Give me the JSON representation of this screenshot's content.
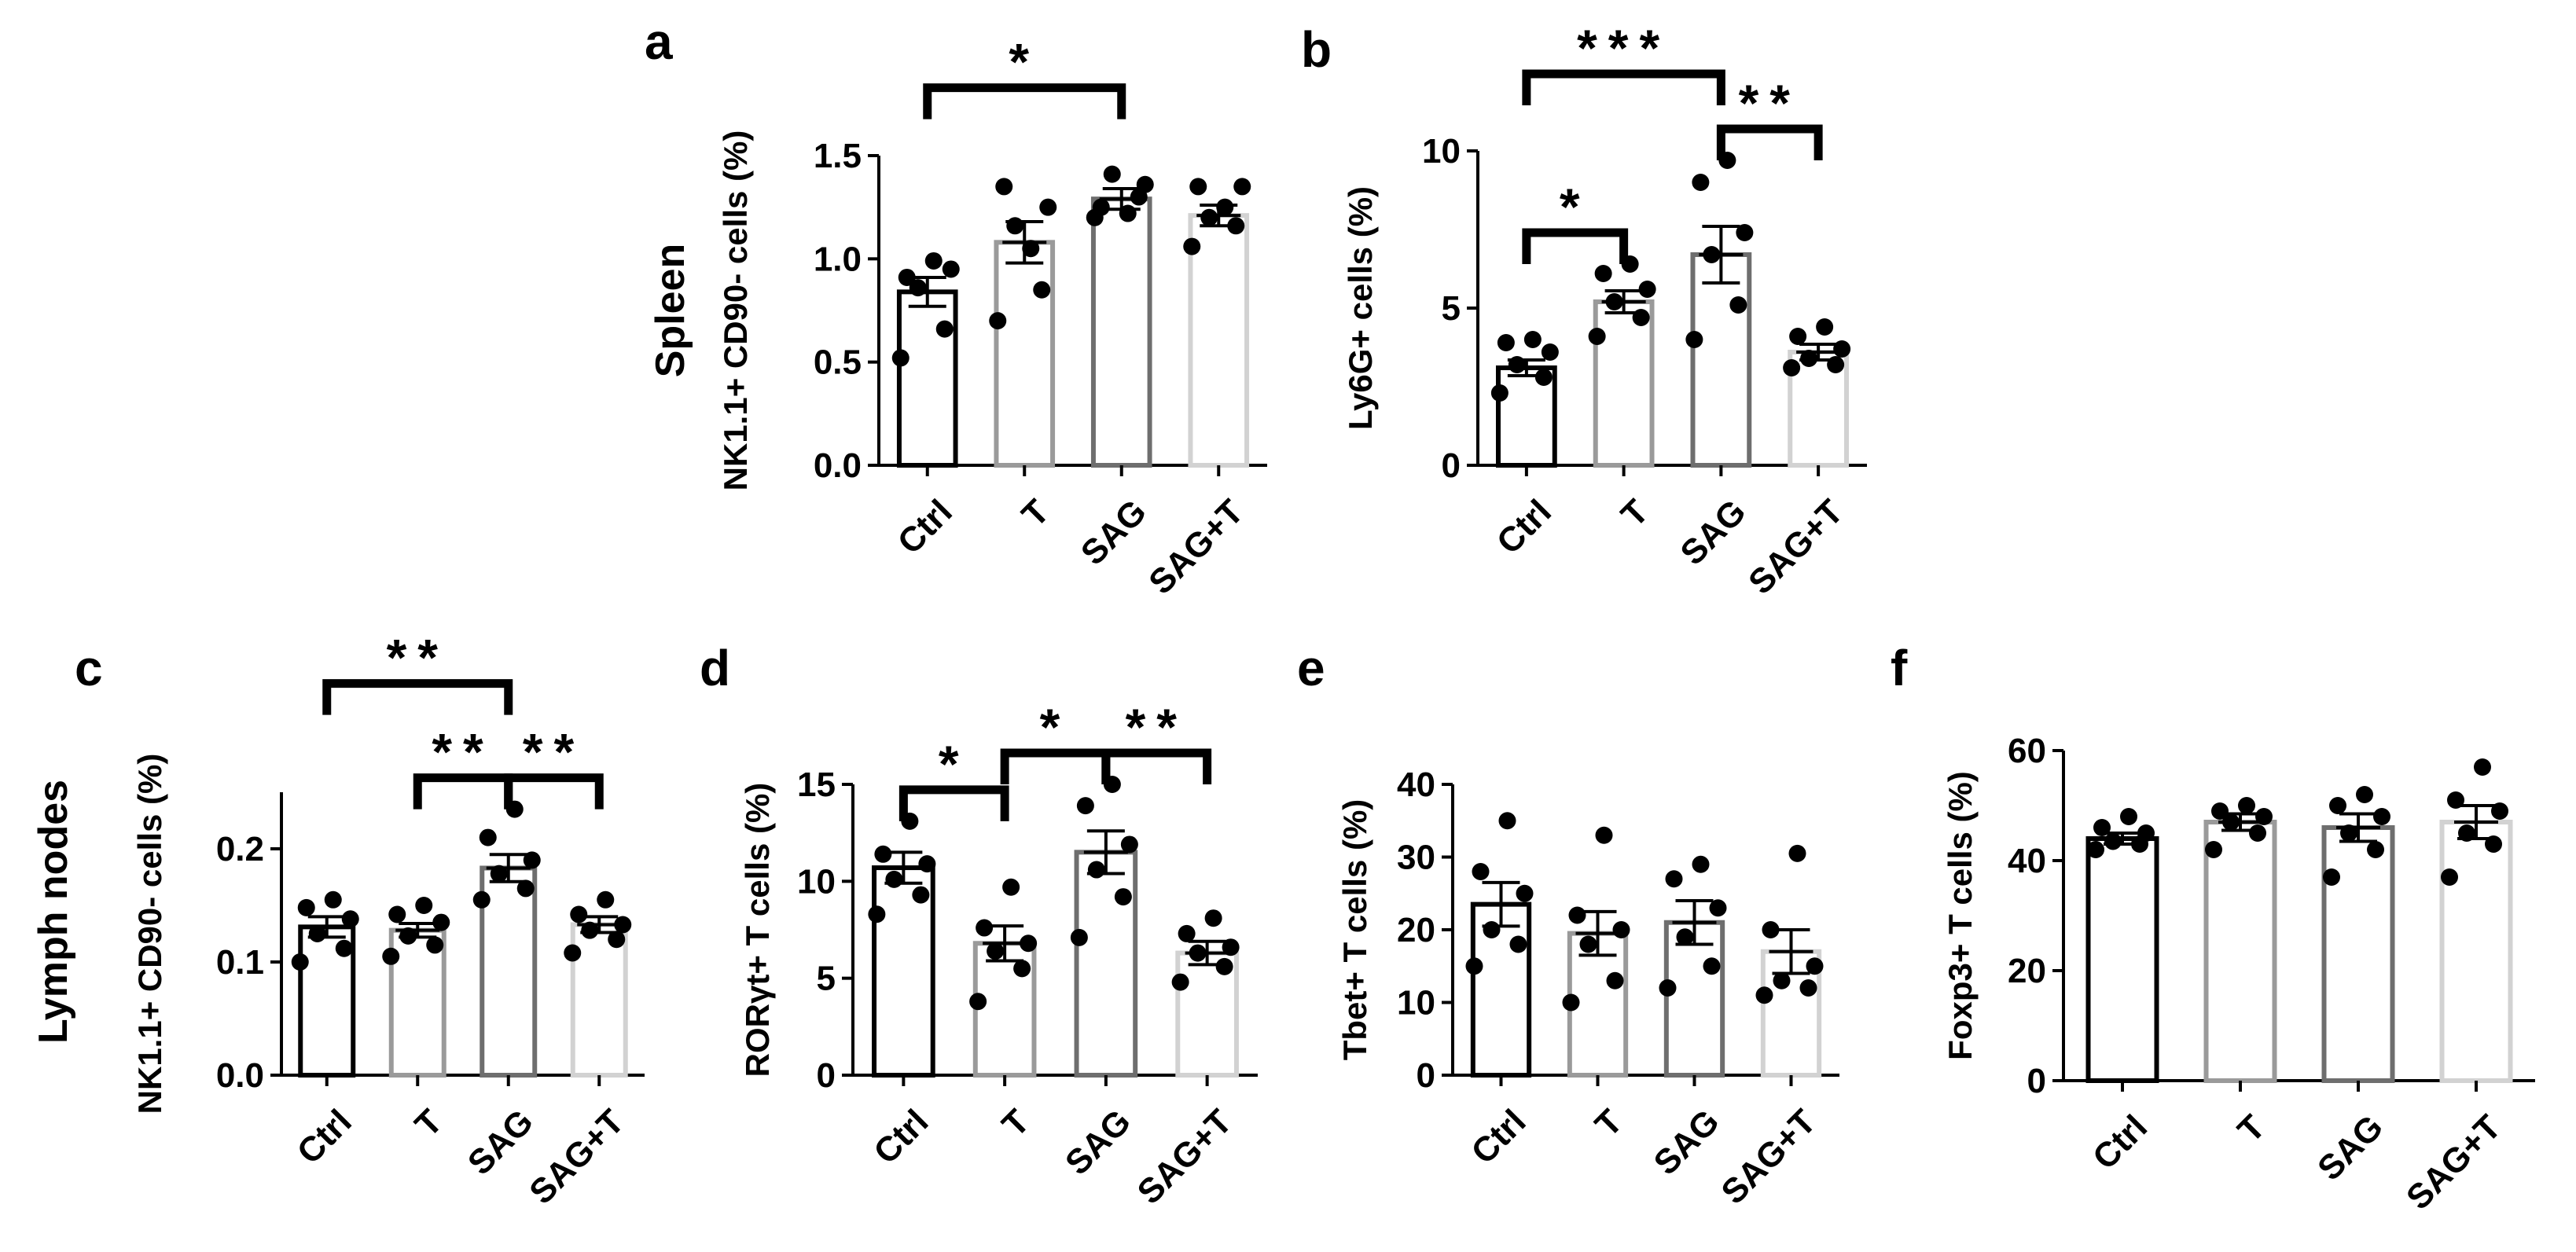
{
  "figure": {
    "row_labels": [
      "Spleen",
      "Lymph nodes"
    ]
  },
  "chart_data": [
    {
      "type": "bar",
      "panel": "a",
      "row": "Spleen",
      "ylabel": "NK1.1+ CD90- cells (%)",
      "ylim": [
        0,
        1.5
      ],
      "yticks": [
        "0.0",
        "0.5",
        "1.0",
        "1.5"
      ],
      "categories": [
        "Ctrl",
        "T",
        "SAG",
        "SAG+T"
      ],
      "values": [
        0.84,
        1.08,
        1.29,
        1.21
      ],
      "errors": [
        0.07,
        0.1,
        0.05,
        0.05
      ],
      "points": [
        [
          0.52,
          0.66,
          0.86,
          0.95,
          0.91,
          0.99
        ],
        [
          0.7,
          0.85,
          1.16,
          1.25,
          1.35,
          1.05
        ],
        [
          1.2,
          1.3,
          1.41,
          1.36,
          1.25,
          1.22
        ],
        [
          1.06,
          1.16,
          1.2,
          1.35,
          1.35,
          1.25
        ]
      ],
      "brackets": [
        {
          "from": 0,
          "to": 2,
          "label": "*"
        }
      ]
    },
    {
      "type": "bar",
      "panel": "b",
      "row": "Spleen",
      "ylabel": "Ly6G+ cells (%)",
      "ylim": [
        0,
        10
      ],
      "yticks": [
        "0",
        "5",
        "10"
      ],
      "categories": [
        "Ctrl",
        "T",
        "SAG",
        "SAG+T"
      ],
      "values": [
        3.1,
        5.2,
        6.7,
        3.6
      ],
      "errors": [
        0.25,
        0.35,
        0.9,
        0.25
      ],
      "points": [
        [
          2.3,
          2.8,
          3.2,
          3.6,
          3.9,
          4.0
        ],
        [
          4.1,
          4.7,
          5.2,
          5.6,
          6.1,
          6.4
        ],
        [
          4.0,
          5.1,
          6.7,
          7.4,
          9.0,
          9.7
        ],
        [
          3.1,
          3.2,
          3.4,
          3.7,
          4.1,
          4.4
        ]
      ],
      "brackets": [
        {
          "from": 0,
          "to": 1,
          "label": "*"
        },
        {
          "from": 0,
          "to": 2,
          "label": "***"
        },
        {
          "from": 2,
          "to": 3,
          "label": "**"
        }
      ]
    },
    {
      "type": "bar",
      "panel": "c",
      "row": "Lymph nodes",
      "ylabel": "NK1.1+ CD90- cells (%)",
      "ylim": [
        0,
        0.25
      ],
      "yticks": [
        "0.0",
        "0.1",
        "0.2"
      ],
      "categories": [
        "Ctrl",
        "T",
        "SAG",
        "SAG+T"
      ],
      "values": [
        0.131,
        0.128,
        0.183,
        0.133
      ],
      "errors": [
        0.009,
        0.006,
        0.012,
        0.007
      ],
      "points": [
        [
          0.1,
          0.112,
          0.125,
          0.138,
          0.148,
          0.155
        ],
        [
          0.105,
          0.115,
          0.123,
          0.135,
          0.142,
          0.15
        ],
        [
          0.155,
          0.165,
          0.178,
          0.19,
          0.21,
          0.235
        ],
        [
          0.108,
          0.12,
          0.128,
          0.133,
          0.142,
          0.155
        ]
      ],
      "brackets": [
        {
          "from": 0,
          "to": 2,
          "label": "**"
        },
        {
          "from": 1,
          "to": 2,
          "label": "**"
        },
        {
          "from": 2,
          "to": 3,
          "label": "**"
        }
      ]
    },
    {
      "type": "bar",
      "panel": "d",
      "row": "Lymph nodes",
      "ylabel": "RORγt+ T cells (%)",
      "ylim": [
        0,
        15
      ],
      "yticks": [
        "0",
        "5",
        "10",
        "15"
      ],
      "categories": [
        "Ctrl",
        "T",
        "SAG",
        "SAG+T"
      ],
      "values": [
        10.7,
        6.8,
        11.5,
        6.3
      ],
      "errors": [
        0.8,
        0.9,
        1.1,
        0.6
      ],
      "points": [
        [
          8.3,
          9.3,
          10.1,
          10.9,
          11.4,
          13.1
        ],
        [
          3.8,
          5.5,
          6.4,
          6.8,
          7.6,
          9.7
        ],
        [
          7.1,
          9.2,
          10.6,
          11.9,
          13.9,
          15.0
        ],
        [
          4.8,
          5.6,
          6.3,
          6.6,
          7.3,
          8.1
        ]
      ],
      "brackets": [
        {
          "from": 0,
          "to": 1,
          "label": "*"
        },
        {
          "from": 1,
          "to": 2,
          "label": "*"
        },
        {
          "from": 2,
          "to": 3,
          "label": "**"
        }
      ]
    },
    {
      "type": "bar",
      "panel": "e",
      "row": "Lymph nodes",
      "ylabel": "Tbet+ T cells (%)",
      "ylim": [
        0,
        40
      ],
      "yticks": [
        "0",
        "10",
        "20",
        "30",
        "40"
      ],
      "categories": [
        "Ctrl",
        "T",
        "SAG",
        "SAG+T"
      ],
      "values": [
        23.5,
        19.5,
        21.0,
        17.0
      ],
      "errors": [
        3.0,
        3.0,
        3.0,
        3.0
      ],
      "points": [
        [
          15.0,
          18.0,
          20.0,
          25.0,
          28.0,
          35.0
        ],
        [
          10.0,
          13.0,
          18.0,
          20.0,
          22.0,
          33.0
        ],
        [
          12.0,
          15.0,
          19.0,
          23.0,
          27.0,
          29.0
        ],
        [
          11.0,
          12.0,
          13.0,
          15.0,
          20.0,
          30.5
        ]
      ],
      "brackets": []
    },
    {
      "type": "bar",
      "panel": "f",
      "row": "Lymph nodes",
      "ylabel": "Foxp3+ T cells (%)",
      "ylim": [
        0,
        60
      ],
      "yticks": [
        "0",
        "20",
        "40",
        "60"
      ],
      "categories": [
        "Ctrl",
        "T",
        "SAG",
        "SAG+T"
      ],
      "values": [
        44.0,
        47.0,
        46.0,
        47.0
      ],
      "errors": [
        1.0,
        1.5,
        2.5,
        3.0
      ],
      "points": [
        [
          42.0,
          43.0,
          43.5,
          45.0,
          46.0,
          48.0
        ],
        [
          42.0,
          45.0,
          47.0,
          48.0,
          49.0,
          50.0
        ],
        [
          37.0,
          42.0,
          45.0,
          48.0,
          50.0,
          52.0
        ],
        [
          37.0,
          43.0,
          45.0,
          49.0,
          51.0,
          57.0
        ]
      ],
      "brackets": []
    }
  ]
}
